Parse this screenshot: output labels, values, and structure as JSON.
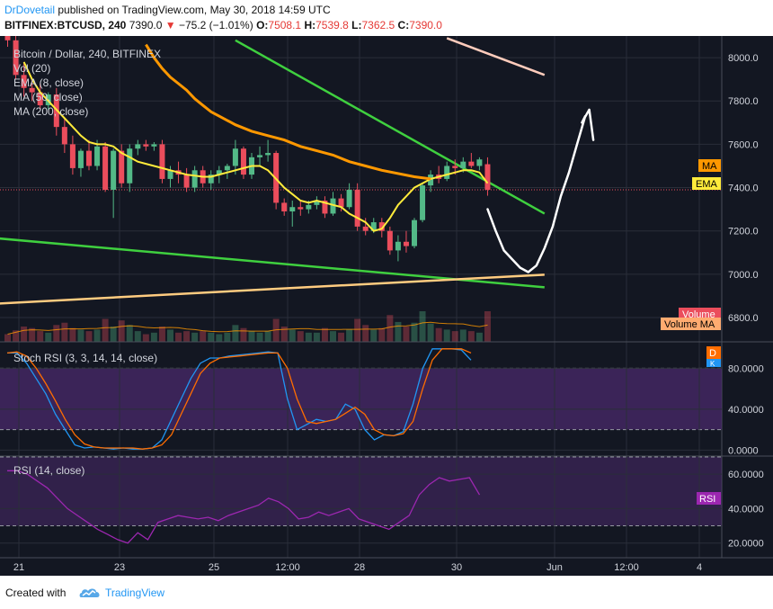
{
  "header": {
    "author": "DrDovetail",
    "published_text": "published on TradingView.com, May 30, 2018 14:59 UTC",
    "symbol": "BITFINEX:BTCUSD, 240",
    "last": "7390.0",
    "change": "−75.2 (−1.01%)",
    "open_label": "O:",
    "open": "7508.1",
    "high_label": "H:",
    "high": "7539.8",
    "low_label": "L:",
    "low": "7362.5",
    "close_label": "C:",
    "close": "7390.0"
  },
  "legend": {
    "title": "Bitcoin / Dollar, 240, BITFINEX",
    "items": [
      "Vol (20)",
      "EMA (8, close)",
      "MA (50, close)",
      "MA (200, close)"
    ]
  },
  "badges": {
    "ma": "MA",
    "ema": "EMA",
    "volume": "Volume",
    "volume_ma": "Volume MA",
    "stoch": "D",
    "stoch_k": "K",
    "rsi": "RSI"
  },
  "panes": {
    "stoch_title": "Stoch RSI (3, 3, 14, 14, close)",
    "rsi_title": "RSI (14, close)"
  },
  "colors": {
    "background": "#131722",
    "up": "#53b987",
    "down": "#eb4d5c",
    "ema": "#ffeb3b",
    "ma50": "#ff9800",
    "ma200": "#ffccbc",
    "trend_green": "#3fd03f",
    "support_orange": "#ffcc80",
    "stoch_k": "#2196f3",
    "stoch_d": "#ff6d00",
    "rsi": "#9c27b0",
    "band": "#4a2a6b"
  },
  "footer": {
    "created_with": "Created with",
    "brand": "TradingView"
  },
  "chart_data": [
    {
      "type": "candlestick",
      "title": "Bitcoin / Dollar, 240, BITFINEX",
      "y_ticks": [
        "8000.0",
        "7800.0",
        "7600.0",
        "7400.0",
        "7200.0",
        "7000.0",
        "6800.0"
      ],
      "ylim": [
        6688,
        8100
      ],
      "x_ticks": [
        "21",
        "23",
        "25",
        "12:00",
        "28",
        "30",
        "Jun",
        "12:00",
        "4"
      ],
      "last_price": 7390.0,
      "candles": [
        {
          "o": 8150,
          "h": 8180,
          "l": 8050,
          "c": 8080
        },
        {
          "o": 8080,
          "h": 8100,
          "l": 7900,
          "c": 7920
        },
        {
          "o": 7920,
          "h": 7980,
          "l": 7820,
          "c": 7860
        },
        {
          "o": 7860,
          "h": 7900,
          "l": 7800,
          "c": 7840
        },
        {
          "o": 7840,
          "h": 7880,
          "l": 7760,
          "c": 7780
        },
        {
          "o": 7780,
          "h": 7840,
          "l": 7760,
          "c": 7830
        },
        {
          "o": 7830,
          "h": 7860,
          "l": 7640,
          "c": 7680
        },
        {
          "o": 7680,
          "h": 7720,
          "l": 7560,
          "c": 7600
        },
        {
          "o": 7600,
          "h": 7640,
          "l": 7460,
          "c": 7490
        },
        {
          "o": 7490,
          "h": 7580,
          "l": 7450,
          "c": 7570
        },
        {
          "o": 7570,
          "h": 7620,
          "l": 7480,
          "c": 7500
        },
        {
          "o": 7500,
          "h": 7620,
          "l": 7480,
          "c": 7590
        },
        {
          "o": 7590,
          "h": 7610,
          "l": 7380,
          "c": 7390
        },
        {
          "o": 7390,
          "h": 7580,
          "l": 7260,
          "c": 7570
        },
        {
          "o": 7570,
          "h": 7600,
          "l": 7400,
          "c": 7420
        },
        {
          "o": 7420,
          "h": 7600,
          "l": 7380,
          "c": 7580
        },
        {
          "o": 7580,
          "h": 7620,
          "l": 7550,
          "c": 7600
        },
        {
          "o": 7600,
          "h": 7620,
          "l": 7570,
          "c": 7590
        },
        {
          "o": 7590,
          "h": 7610,
          "l": 7570,
          "c": 7600
        },
        {
          "o": 7600,
          "h": 7620,
          "l": 7420,
          "c": 7440
        },
        {
          "o": 7440,
          "h": 7500,
          "l": 7400,
          "c": 7480
        },
        {
          "o": 7480,
          "h": 7520,
          "l": 7420,
          "c": 7460
        },
        {
          "o": 7460,
          "h": 7490,
          "l": 7380,
          "c": 7400
        },
        {
          "o": 7400,
          "h": 7500,
          "l": 7380,
          "c": 7480
        },
        {
          "o": 7480,
          "h": 7500,
          "l": 7400,
          "c": 7420
        },
        {
          "o": 7420,
          "h": 7480,
          "l": 7390,
          "c": 7460
        },
        {
          "o": 7460,
          "h": 7500,
          "l": 7420,
          "c": 7480
        },
        {
          "o": 7480,
          "h": 7510,
          "l": 7440,
          "c": 7500
        },
        {
          "o": 7500,
          "h": 7620,
          "l": 7460,
          "c": 7580
        },
        {
          "o": 7580,
          "h": 7590,
          "l": 7440,
          "c": 7460
        },
        {
          "o": 7460,
          "h": 7560,
          "l": 7440,
          "c": 7540
        },
        {
          "o": 7540,
          "h": 7590,
          "l": 7500,
          "c": 7550
        },
        {
          "o": 7550,
          "h": 7620,
          "l": 7520,
          "c": 7560
        },
        {
          "o": 7560,
          "h": 7570,
          "l": 7300,
          "c": 7330
        },
        {
          "o": 7330,
          "h": 7350,
          "l": 7270,
          "c": 7290
        },
        {
          "o": 7290,
          "h": 7340,
          "l": 7220,
          "c": 7310
        },
        {
          "o": 7310,
          "h": 7340,
          "l": 7270,
          "c": 7300
        },
        {
          "o": 7300,
          "h": 7340,
          "l": 7280,
          "c": 7320
        },
        {
          "o": 7320,
          "h": 7360,
          "l": 7300,
          "c": 7340
        },
        {
          "o": 7340,
          "h": 7360,
          "l": 7260,
          "c": 7280
        },
        {
          "o": 7280,
          "h": 7380,
          "l": 7270,
          "c": 7350
        },
        {
          "o": 7350,
          "h": 7370,
          "l": 7290,
          "c": 7310
        },
        {
          "o": 7310,
          "h": 7420,
          "l": 7300,
          "c": 7390
        },
        {
          "o": 7390,
          "h": 7420,
          "l": 7200,
          "c": 7220
        },
        {
          "o": 7220,
          "h": 7260,
          "l": 7180,
          "c": 7200
        },
        {
          "o": 7200,
          "h": 7260,
          "l": 7190,
          "c": 7240
        },
        {
          "o": 7240,
          "h": 7260,
          "l": 7170,
          "c": 7200
        },
        {
          "o": 7200,
          "h": 7220,
          "l": 7090,
          "c": 7110
        },
        {
          "o": 7110,
          "h": 7180,
          "l": 7060,
          "c": 7150
        },
        {
          "o": 7150,
          "h": 7200,
          "l": 7100,
          "c": 7130
        },
        {
          "o": 7130,
          "h": 7260,
          "l": 7120,
          "c": 7250
        },
        {
          "o": 7250,
          "h": 7420,
          "l": 7240,
          "c": 7410
        },
        {
          "o": 7410,
          "h": 7480,
          "l": 7380,
          "c": 7460
        },
        {
          "o": 7460,
          "h": 7500,
          "l": 7420,
          "c": 7440
        },
        {
          "o": 7440,
          "h": 7520,
          "l": 7430,
          "c": 7500
        },
        {
          "o": 7500,
          "h": 7530,
          "l": 7460,
          "c": 7490
        },
        {
          "o": 7490,
          "h": 7540,
          "l": 7470,
          "c": 7520
        },
        {
          "o": 7520,
          "h": 7560,
          "l": 7490,
          "c": 7500
        },
        {
          "o": 7500,
          "h": 7540,
          "l": 7480,
          "c": 7530
        },
        {
          "o": 7508.1,
          "h": 7539.8,
          "l": 7362.5,
          "c": 7390.0
        }
      ],
      "volume_ylim": [
        0,
        100
      ],
      "volumes": [
        10,
        15,
        20,
        18,
        14,
        12,
        22,
        25,
        18,
        16,
        14,
        16,
        30,
        20,
        28,
        22,
        14,
        10,
        12,
        20,
        16,
        12,
        14,
        12,
        14,
        12,
        10,
        12,
        22,
        18,
        14,
        12,
        14,
        30,
        20,
        16,
        14,
        12,
        12,
        18,
        14,
        12,
        16,
        30,
        22,
        16,
        18,
        35,
        26,
        20,
        25,
        40,
        24,
        18,
        16,
        14,
        16,
        14,
        12,
        40
      ],
      "ema_8": [
        7980,
        7900,
        7840,
        7800,
        7760,
        7720,
        7680,
        7640,
        7610,
        7600,
        7600,
        7590,
        7560,
        7540,
        7520,
        7510,
        7500,
        7490,
        7480,
        7470,
        7460,
        7455,
        7450,
        7450,
        7460,
        7470,
        7480,
        7490,
        7500,
        7500,
        7480,
        7440,
        7400,
        7370,
        7340,
        7330,
        7340,
        7330,
        7320,
        7310,
        7280,
        7260,
        7240,
        7200,
        7210,
        7260,
        7320,
        7360,
        7400,
        7420,
        7440,
        7450,
        7460,
        7470,
        7480,
        7480,
        7470,
        7420
      ],
      "ma_50": [
        8060,
        8000,
        7950,
        7910,
        7880,
        7850,
        7810,
        7780,
        7750,
        7730,
        7710,
        7690,
        7660,
        7640,
        7620,
        7590,
        7570,
        7550,
        7520,
        7500,
        7480,
        7450,
        7440
      ],
      "ma_50_x": [
        17,
        18,
        19,
        20,
        21,
        22,
        23,
        24,
        25,
        26,
        27,
        28,
        30,
        32,
        34,
        36,
        38,
        40,
        42,
        44,
        46,
        50,
        52
      ],
      "trendlines": [
        {
          "name": "descending-resistance",
          "from": [
            28,
            8080
          ],
          "to": [
            66,
            7280
          ],
          "color": "trend_green"
        },
        {
          "name": "lower-support",
          "from": [
            -1,
            7165
          ],
          "to": [
            66,
            6940
          ],
          "color": "trend_green"
        },
        {
          "name": "rising-support",
          "from": [
            -1,
            6865
          ],
          "to": [
            66,
            6998
          ],
          "color": "support_orange"
        },
        {
          "name": "ma-200",
          "from": [
            54,
            8090
          ],
          "to": [
            66,
            7920
          ],
          "color": "ma200"
        }
      ],
      "projection": [
        [
          59,
          7300
        ],
        [
          60,
          7200
        ],
        [
          61,
          7110
        ],
        [
          62,
          7070
        ],
        [
          63,
          7030
        ],
        [
          64,
          7010
        ],
        [
          65,
          7040
        ],
        [
          66,
          7120
        ],
        [
          67,
          7220
        ],
        [
          68,
          7360
        ],
        [
          69,
          7470
        ],
        [
          70,
          7600
        ],
        [
          71,
          7730
        ],
        [
          70.6,
          7700
        ],
        [
          71.5,
          7760
        ],
        [
          72,
          7620
        ]
      ]
    },
    {
      "type": "line",
      "title": "Stoch RSI (3, 3, 14, 14, close)",
      "y_ticks": [
        "80.0000",
        "40.0000",
        "0.0000"
      ],
      "ylim": [
        -5,
        105
      ],
      "bands": [
        20,
        80
      ],
      "series": [
        {
          "name": "K",
          "values": [
            95,
            95,
            85,
            70,
            55,
            35,
            20,
            5,
            2,
            3,
            2,
            1,
            2,
            1,
            1,
            2,
            10,
            30,
            50,
            70,
            85,
            90,
            90,
            92,
            93,
            94,
            95,
            96,
            95,
            50,
            20,
            25,
            30,
            28,
            30,
            45,
            40,
            20,
            10,
            15,
            14,
            18,
            45,
            80,
            99,
            99,
            99,
            98,
            88
          ]
        },
        {
          "name": "D",
          "values": [
            95,
            96,
            92,
            80,
            65,
            48,
            30,
            15,
            6,
            3,
            2,
            2,
            2,
            2,
            1,
            2,
            5,
            15,
            35,
            55,
            75,
            85,
            90,
            91,
            92,
            93,
            94,
            95,
            95,
            80,
            50,
            28,
            26,
            28,
            30,
            36,
            42,
            35,
            20,
            15,
            14,
            16,
            28,
            60,
            88,
            99,
            99,
            99,
            95
          ]
        }
      ]
    },
    {
      "type": "line",
      "title": "RSI (14, close)",
      "y_ticks": [
        "60.0000",
        "40.0000",
        "20.0000"
      ],
      "ylim": [
        12,
        70
      ],
      "bands": [
        30,
        70
      ],
      "series": [
        {
          "name": "RSI",
          "values": [
            62,
            62,
            60,
            56,
            52,
            46,
            40,
            36,
            32,
            28,
            25,
            22,
            20,
            26,
            22,
            32,
            34,
            36,
            35,
            34,
            35,
            33,
            36,
            38,
            40,
            42,
            46,
            44,
            40,
            34,
            35,
            38,
            36,
            38,
            40,
            34,
            32,
            30,
            28,
            32,
            36,
            48,
            54,
            58,
            56,
            57,
            58,
            48
          ]
        }
      ]
    }
  ]
}
